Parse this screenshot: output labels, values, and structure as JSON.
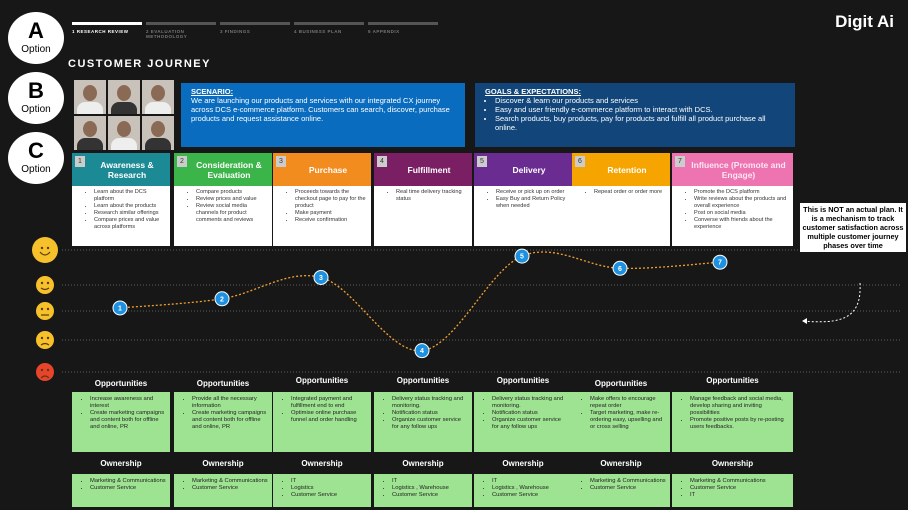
{
  "options": [
    {
      "letter": "A",
      "label": "Option"
    },
    {
      "letter": "B",
      "label": "Option"
    },
    {
      "letter": "C",
      "label": "Option"
    }
  ],
  "nav": [
    "1 RESEARCH REVIEW",
    "2 EVALUATION METHODOLOGY",
    "3 FINDINGS",
    "4 BUSINESS PLAN",
    "5 APPENDIX"
  ],
  "brand": "Digit Ai",
  "title": "CUSTOMER JOURNEY",
  "scenario": {
    "heading": "SCENARIO:",
    "text": "We are launching our products and services with our integrated CX journey across DCS e-commerce platform. Customers can search, discover, purchase products and request assistance online."
  },
  "goals": {
    "heading": "GOALS & EXPECTATIONS:",
    "items": [
      "Discover & learn our products and services",
      "Easy and user friendly e-commerce platform to interact with DCS.",
      "Search products, buy products, pay for products and fulfill all product purchase all online."
    ]
  },
  "phases": [
    {
      "number": "1",
      "title": "Awareness & Research",
      "color": "#1b8a95",
      "items": [
        "Learn about the DCS platform",
        "Learn about the products",
        "Research similar offerings",
        "Compare prices and value across platforms"
      ]
    },
    {
      "number": "2",
      "title": "Consideration & Evaluation",
      "color": "#3bb54a",
      "items": [
        "Compare products",
        "Review prices and value",
        "Review social media channels for product comments and reviews"
      ]
    },
    {
      "number": "3",
      "title": "Purchase",
      "color": "#f28c1e",
      "items": [
        "Proceeds towards the checkout page to pay for the product",
        "Make payment",
        "Receive confirmation"
      ]
    },
    {
      "number": "4",
      "title": "Fulfillment",
      "color": "#7a1f64",
      "items": [
        "Real time delivery tracking status"
      ]
    },
    {
      "number": "5",
      "title": "Delivery",
      "color": "#6a2c91",
      "items": [
        "Receive or pick up on order",
        "Easy Buy and Return Policy when needed"
      ]
    },
    {
      "number": "6",
      "title": "Retention",
      "color": "#f5a400",
      "items": [
        "Repeat order or order more"
      ]
    },
    {
      "number": "7",
      "title": "Influence (Promote and Engage)",
      "color": "#ee74b1",
      "items": [
        "Promote the DCS platform",
        "Write reviews about the products and overall experience",
        "Post on social media",
        "Converse with friends about the experience"
      ]
    }
  ],
  "journey": {
    "labels": [
      "1",
      "2",
      "3",
      "4",
      "5",
      "6",
      "7"
    ],
    "values": [
      3.1,
      3.4,
      4.1,
      1.7,
      4.8,
      4.4,
      4.6
    ],
    "ylim": [
      1,
      5
    ],
    "color": "#f0a030"
  },
  "note": "This is NOT an actual plan. It is a mechanism to track customer satisfaction across multiple customer journey phases over time",
  "opportunities": {
    "heading": "Opportunities",
    "items": [
      [
        "Increase awareness and interest",
        "Create marketing campaigns and content both for offline and online, PR"
      ],
      [
        "Provide all the necessary information",
        "Create marketing campaigns and content both for offline and online, PR"
      ],
      [
        "Integrated payment and fulfillment end to end",
        "Optimise online purchase funnel and order handling"
      ],
      [
        "Delivery status tracking and monitoring.",
        "Notification status",
        "Organize customer service for any follow ups"
      ],
      [
        "Delivery status tracking and monitoring.",
        "Notification status",
        "Organize customer service for any follow ups"
      ],
      [
        "Make offers to encourage repeat order",
        "Target marketing, make re-ordering easy, upselling and or cross selling"
      ],
      [
        "Manage  feedback and social media, develop sharing and inviting possibilities",
        "Promote positive posts by re-posting users feedbacks."
      ]
    ]
  },
  "ownership": {
    "heading": "Ownership",
    "items": [
      [
        "Marketing & Communications",
        "Customer Service"
      ],
      [
        "Marketing & Communications",
        "Customer Service"
      ],
      [
        "IT",
        "Logistics",
        "Customer Service"
      ],
      [
        "IT",
        "Logistics , Warehouse",
        "Customer Service"
      ],
      [
        "IT",
        "Logistics , Warehouse",
        "Customer Service"
      ],
      [
        "Marketing & Communications",
        "Customer Service"
      ],
      [
        "Marketing & Communications",
        "Customer Service",
        "IT"
      ]
    ]
  }
}
